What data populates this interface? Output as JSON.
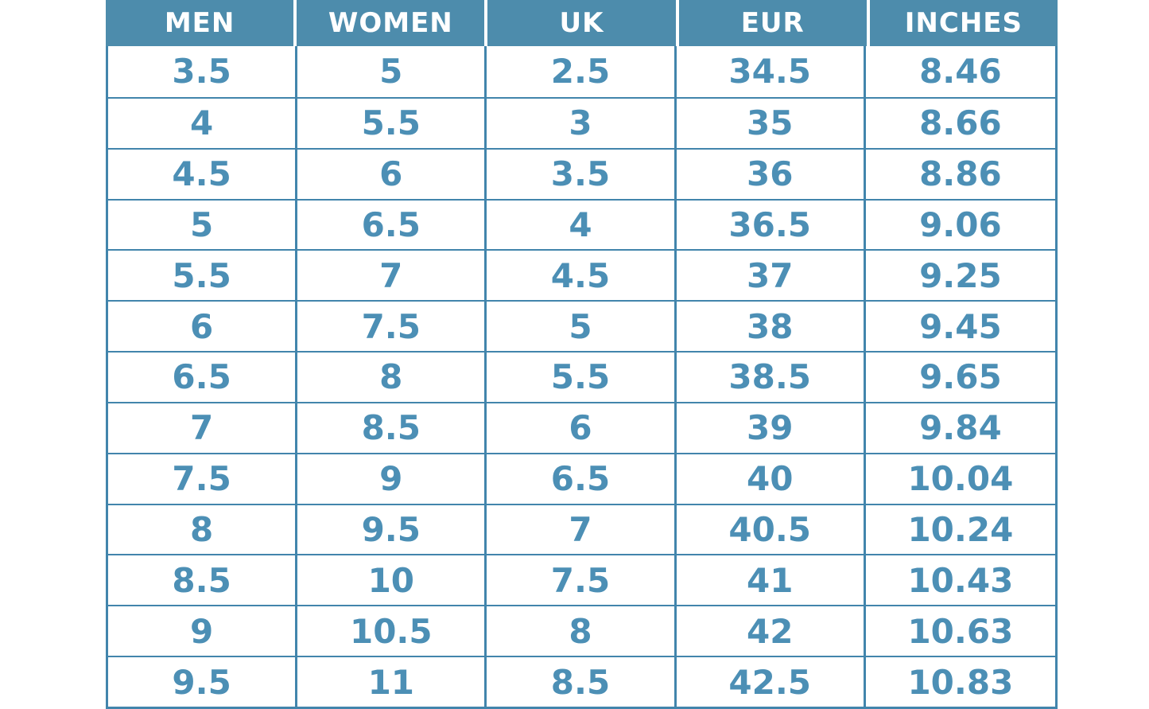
{
  "colors": {
    "header_bg": "#4d8cac",
    "header_text": "#ffffff",
    "cell_text": "#4c8fb5",
    "border": "#4285ac",
    "page_bg": "#ffffff"
  },
  "chart_data": {
    "type": "table",
    "columns": [
      "MEN",
      "WOMEN",
      "UK",
      "EUR",
      "INCHES"
    ],
    "rows": [
      [
        "3.5",
        "5",
        "2.5",
        "34.5",
        "8.46"
      ],
      [
        "4",
        "5.5",
        "3",
        "35",
        "8.66"
      ],
      [
        "4.5",
        "6",
        "3.5",
        "36",
        "8.86"
      ],
      [
        "5",
        "6.5",
        "4",
        "36.5",
        "9.06"
      ],
      [
        "5.5",
        "7",
        "4.5",
        "37",
        "9.25"
      ],
      [
        "6",
        "7.5",
        "5",
        "38",
        "9.45"
      ],
      [
        "6.5",
        "8",
        "5.5",
        "38.5",
        "9.65"
      ],
      [
        "7",
        "8.5",
        "6",
        "39",
        "9.84"
      ],
      [
        "7.5",
        "9",
        "6.5",
        "40",
        "10.04"
      ],
      [
        "8",
        "9.5",
        "7",
        "40.5",
        "10.24"
      ],
      [
        "8.5",
        "10",
        "7.5",
        "41",
        "10.43"
      ],
      [
        "9",
        "10.5",
        "8",
        "42",
        "10.63"
      ],
      [
        "9.5",
        "11",
        "8.5",
        "42.5",
        "10.83"
      ]
    ]
  }
}
